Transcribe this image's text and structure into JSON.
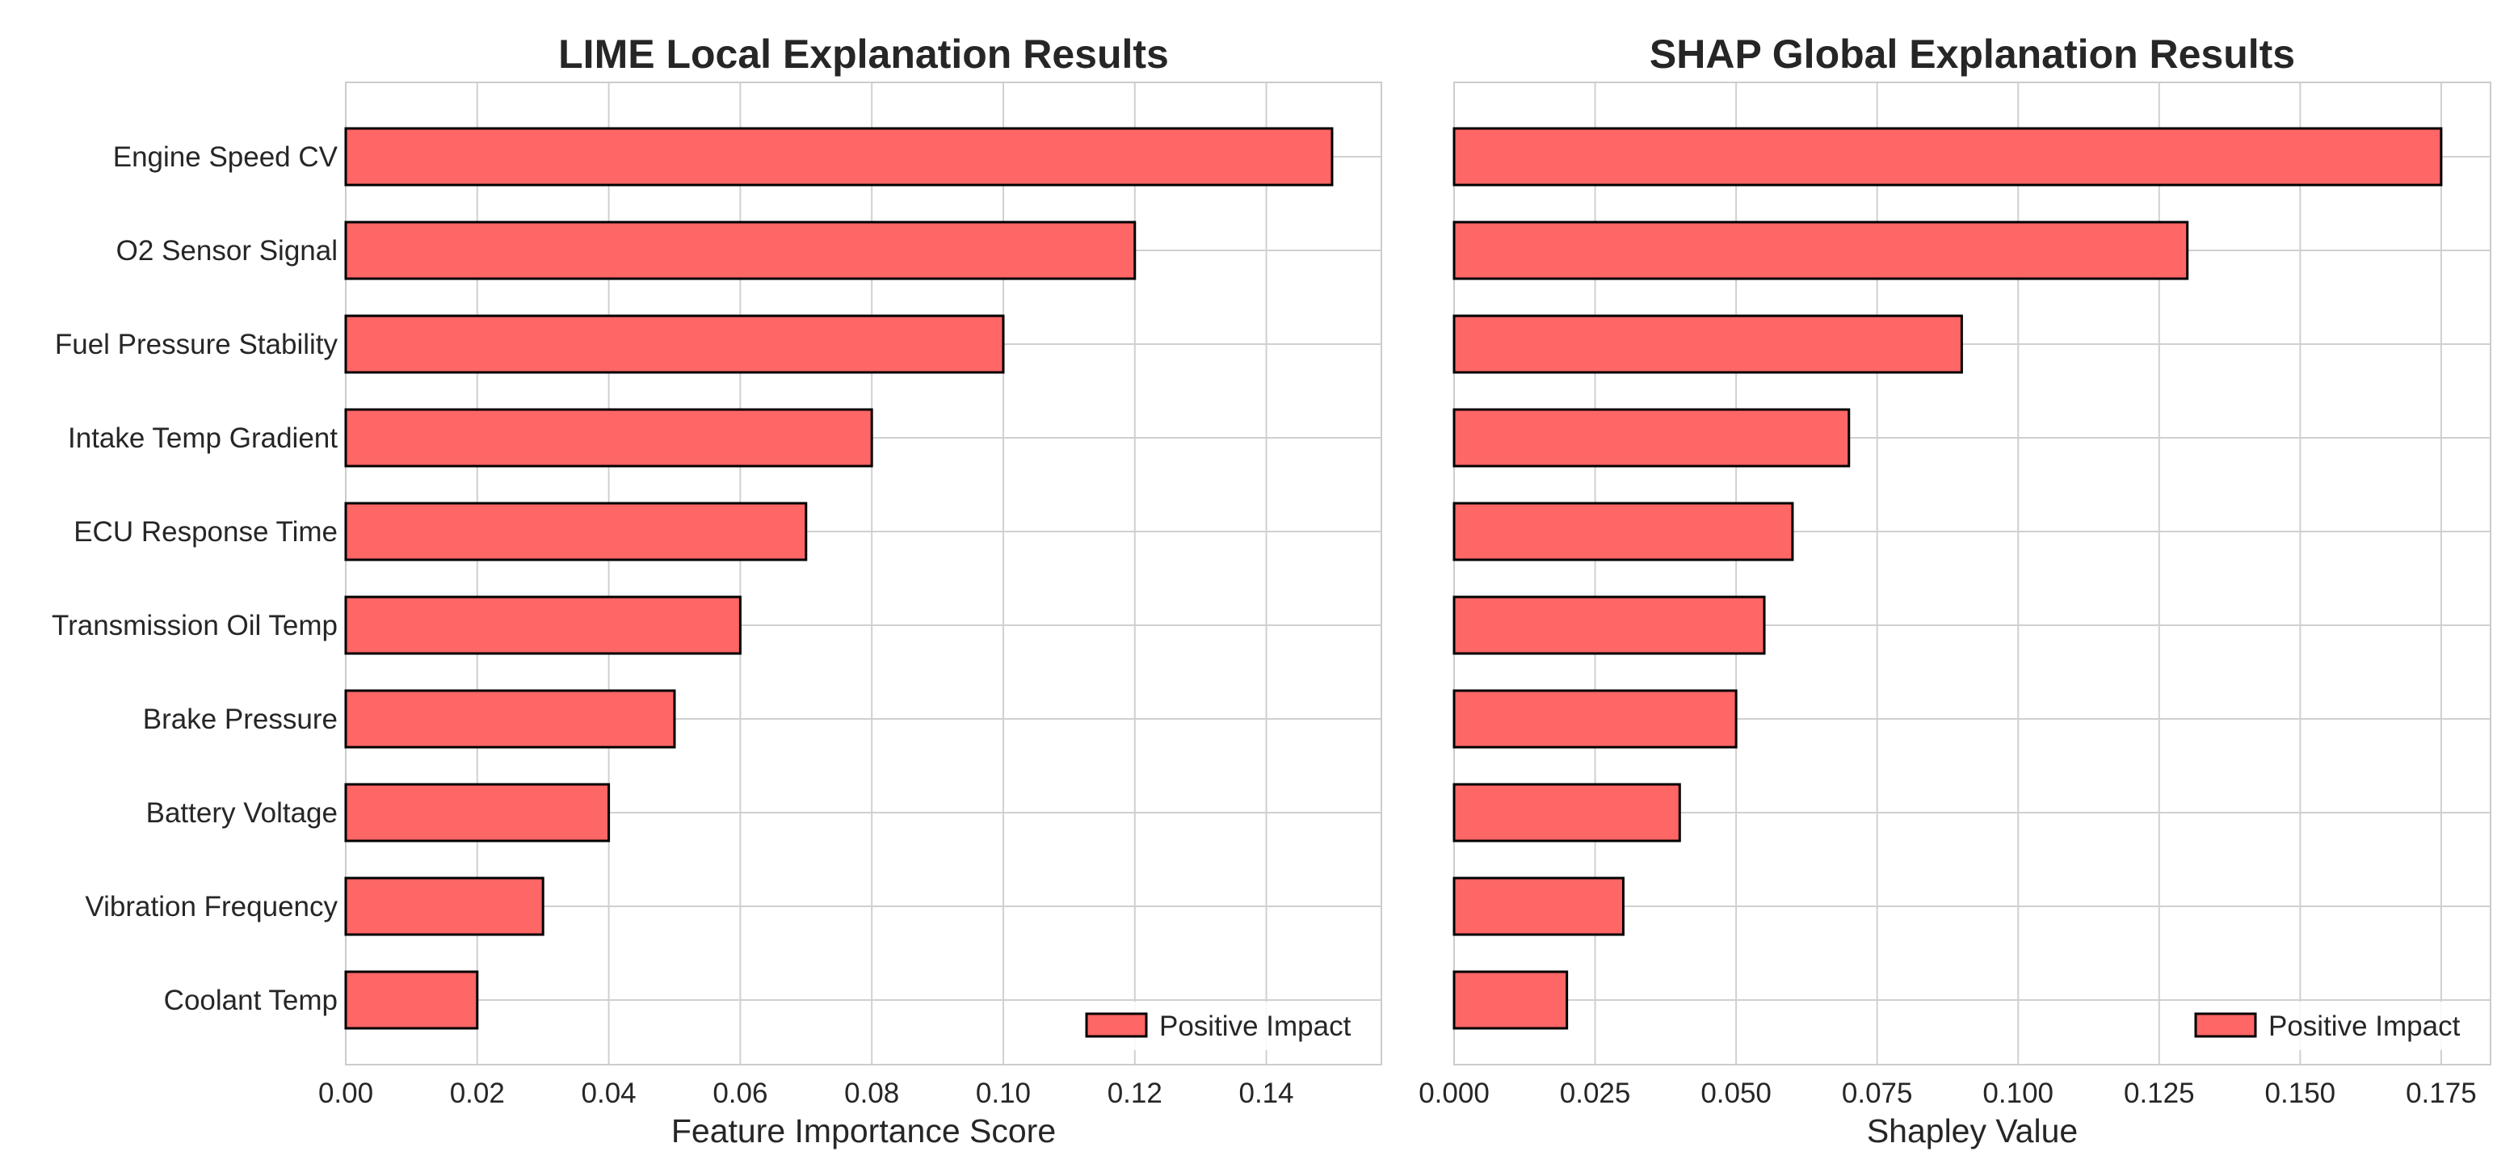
{
  "colors": {
    "bar_fill": "#ff6666",
    "bar_edge": "#000000",
    "grid": "#d0d0d0",
    "frame": "#cccccc",
    "text": "#262626"
  },
  "chart_data": [
    {
      "type": "bar",
      "orientation": "horizontal",
      "title": "LIME Local Explanation Results",
      "xlabel": "Feature Importance Score",
      "ylabel": "",
      "categories": [
        "Engine Speed CV",
        "O2 Sensor Signal",
        "Fuel Pressure Stability",
        "Intake Temp Gradient",
        "ECU Response Time",
        "Transmission Oil Temp",
        "Brake Pressure",
        "Battery Voltage",
        "Vibration Frequency",
        "Coolant Temp"
      ],
      "series": [
        {
          "name": "Positive Impact",
          "values": [
            0.15,
            0.12,
            0.1,
            0.08,
            0.07,
            0.06,
            0.05,
            0.04,
            0.03,
            0.02
          ]
        }
      ],
      "xlim": [
        0,
        0.1575
      ],
      "xticks": [
        "0.00",
        "0.02",
        "0.04",
        "0.06",
        "0.08",
        "0.10",
        "0.12",
        "0.14"
      ],
      "grid": true,
      "legend": "lower-right"
    },
    {
      "type": "bar",
      "orientation": "horizontal",
      "title": "SHAP Global Explanation Results",
      "xlabel": "Shapley Value",
      "ylabel": "",
      "categories": [
        "Engine Speed CV",
        "O2 Sensor Signal",
        "Fuel Pressure Stability",
        "Intake Temp Gradient",
        "ECU Response Time",
        "Transmission Oil Temp",
        "Brake Pressure",
        "Battery Voltage",
        "Vibration Frequency",
        "Coolant Temp"
      ],
      "series": [
        {
          "name": "Positive Impact",
          "values": [
            0.175,
            0.13,
            0.09,
            0.07,
            0.06,
            0.055,
            0.05,
            0.04,
            0.03,
            0.02
          ]
        }
      ],
      "xlim": [
        0,
        0.18375
      ],
      "xticks": [
        "0.000",
        "0.025",
        "0.050",
        "0.075",
        "0.100",
        "0.125",
        "0.150",
        "0.175"
      ],
      "grid": true,
      "legend": "lower-right",
      "shared_y_labels": true
    }
  ]
}
